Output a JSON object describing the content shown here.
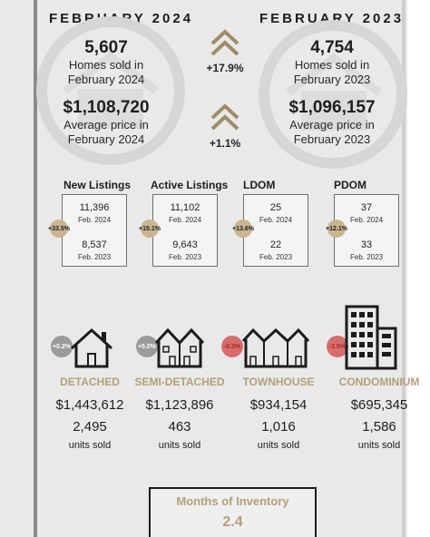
{
  "comparison": {
    "current": {
      "title": "FEBRUARY 2024",
      "homes_sold": "5,607",
      "homes_sold_label_1": "Homes sold in",
      "homes_sold_label_2": "February 2024",
      "avg_price": "$1,108,720",
      "avg_price_label_1": "Average price in",
      "avg_price_label_2": "February 2024"
    },
    "previous": {
      "title": "FEBRUARY 2023",
      "homes_sold": "4,754",
      "homes_sold_label_1": "Homes sold in",
      "homes_sold_label_2": "February 2023",
      "avg_price": "$1,096,157",
      "avg_price_label_1": "Average price in",
      "avg_price_label_2": "February 2023"
    },
    "homes_sold_change": "+17.9%",
    "avg_price_change": "+1.1%"
  },
  "kpis": [
    {
      "title": "New Listings",
      "badge": "+33.5%",
      "value_2024": "11,396",
      "label_2024": "Feb. 2024",
      "value_2023": "8,537",
      "label_2023": "Feb. 2023"
    },
    {
      "title": "Active Listings",
      "badge": "+15.1%",
      "value_2024": "11,102",
      "label_2024": "Feb. 2024",
      "value_2023": "9,643",
      "label_2023": "Feb. 2023"
    },
    {
      "title": "LDOM",
      "badge": "+13.6%",
      "value_2024": "25",
      "label_2024": "Feb. 2024",
      "value_2023": "22",
      "label_2023": "Feb. 2023"
    },
    {
      "title": "PDOM",
      "badge": "+12.1%",
      "value_2024": "37",
      "label_2024": "Feb. 2024",
      "value_2023": "33",
      "label_2023": "Feb. 2023"
    }
  ],
  "properties": [
    {
      "type": "DETACHED",
      "badge": "+0.2%",
      "price": "$1,443,612",
      "units": "2,495",
      "units_label": "units sold"
    },
    {
      "type": "SEMI-DETACHED",
      "badge": "+5.0%",
      "price": "$1,123,896",
      "units": "463",
      "units_label": "units sold"
    },
    {
      "type": "TOWNHOUSE",
      "badge": "-0.3%",
      "price": "$934,154",
      "units": "1,016",
      "units_label": "units sold"
    },
    {
      "type": "CONDOMINIUM",
      "badge": "-3.5%",
      "price": "$695,345",
      "units": "1,586",
      "units_label": "units sold"
    }
  ],
  "inventory": {
    "title": "Months of Inventory",
    "value": "2.4"
  },
  "colors": {
    "accent_tan": "#b49f78",
    "badge_tan": "#c9b58f",
    "badge_red": "#d86d6d",
    "badge_grey": "#9b9b9b"
  }
}
